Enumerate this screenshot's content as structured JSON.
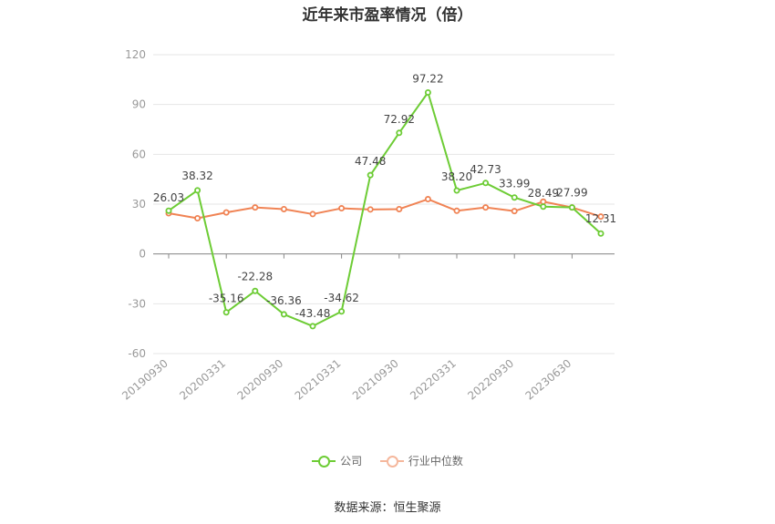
{
  "chart_data": {
    "type": "line",
    "title": "近年来市盈率情况（倍）",
    "source": "数据来源：恒生聚源",
    "ylim": [
      -60,
      120
    ],
    "yticks": [
      120,
      90,
      60,
      30,
      0,
      -30,
      -60
    ],
    "xtick_labels": [
      "20190930",
      "20200331",
      "20200930",
      "20210331",
      "20210930",
      "20220331",
      "20220930",
      "20230630"
    ],
    "xtick_indices": [
      0,
      2,
      4,
      6,
      8,
      10,
      12,
      14
    ],
    "grid": true,
    "legend_position": "bottom",
    "series": [
      {
        "name": "公司",
        "color": "#6dcc35",
        "values": [
          26.03,
          38.32,
          -35.16,
          -22.28,
          -36.36,
          -43.48,
          -34.62,
          47.48,
          72.92,
          97.22,
          38.2,
          42.73,
          33.99,
          28.49,
          27.99,
          12.31
        ],
        "labels": [
          "26.03",
          "38.32",
          "-35.16",
          "-22.28",
          "-36.36",
          "-43.48",
          "-34.62",
          "47.48",
          "72.92",
          "97.22",
          "38.20",
          "42.73",
          "33.99",
          "28.49",
          "27.99",
          "12.31"
        ]
      },
      {
        "name": "行业中位数",
        "color": "#f08354",
        "values": [
          24.5,
          21.5,
          25.0,
          28.0,
          27.0,
          24.0,
          27.5,
          26.8,
          27.0,
          33.0,
          26.0,
          28.0,
          25.8,
          31.5,
          28.0,
          22.5
        ]
      }
    ]
  }
}
